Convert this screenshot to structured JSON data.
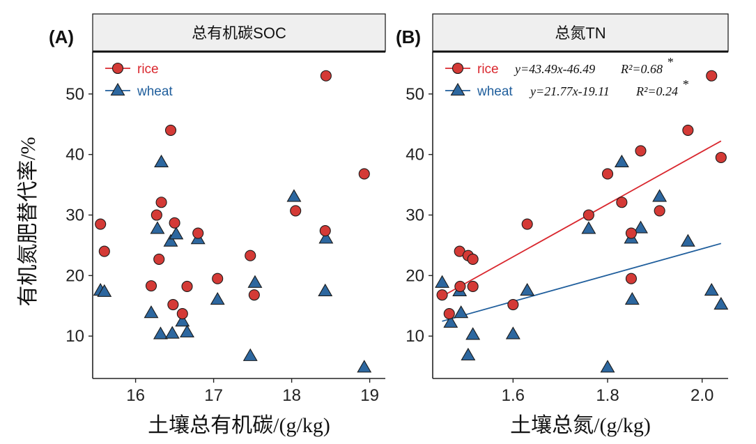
{
  "y_axis_title": "有机氮肥替代率/%",
  "colors": {
    "rice": "#d9272e",
    "wheat": "#1f5e9c",
    "rice_fill": "#d43a36",
    "wheat_fill": "#2d679f"
  },
  "chart_data": [
    {
      "type": "scatter",
      "panel_letter": "(A)",
      "title": "总有机碳SOC",
      "xlabel": "土壤总有机碳/(g/kg)",
      "ylabel": "有机氮肥替代率/%",
      "xlim": [
        15.45,
        19.2
      ],
      "ylim": [
        3,
        57
      ],
      "xticks": [
        16,
        17,
        18,
        19
      ],
      "xtick_labels": [
        "16",
        "17",
        "18",
        "19"
      ],
      "yticks": [
        10,
        20,
        30,
        40,
        50
      ],
      "ytick_labels": [
        "10",
        "20",
        "30",
        "40",
        "50"
      ],
      "grid": false,
      "legend_position": "top-left",
      "series": [
        {
          "name": "rice",
          "marker": "circle",
          "points": [
            [
              15.55,
              28.5
            ],
            [
              15.6,
              24.0
            ],
            [
              16.2,
              18.3
            ],
            [
              16.27,
              30.0
            ],
            [
              16.3,
              22.7
            ],
            [
              16.33,
              32.1
            ],
            [
              16.45,
              44.0
            ],
            [
              16.48,
              15.2
            ],
            [
              16.5,
              28.7
            ],
            [
              16.6,
              13.7
            ],
            [
              16.66,
              18.2
            ],
            [
              16.8,
              27.0
            ],
            [
              17.05,
              19.5
            ],
            [
              17.47,
              23.3
            ],
            [
              17.52,
              16.8
            ],
            [
              18.05,
              30.7
            ],
            [
              18.43,
              27.4
            ],
            [
              18.44,
              53.0
            ],
            [
              18.93,
              36.8
            ]
          ]
        },
        {
          "name": "wheat",
          "marker": "triangle",
          "points": [
            [
              15.55,
              17.5
            ],
            [
              15.6,
              17.3
            ],
            [
              16.2,
              13.8
            ],
            [
              16.28,
              27.7
            ],
            [
              16.32,
              10.3
            ],
            [
              16.33,
              38.7
            ],
            [
              16.45,
              25.6
            ],
            [
              16.47,
              10.4
            ],
            [
              16.52,
              26.8
            ],
            [
              16.6,
              12.4
            ],
            [
              16.66,
              10.6
            ],
            [
              16.8,
              26.0
            ],
            [
              17.05,
              16.0
            ],
            [
              17.47,
              6.7
            ],
            [
              17.53,
              18.8
            ],
            [
              18.03,
              33.0
            ],
            [
              18.43,
              17.4
            ],
            [
              18.44,
              26.1
            ],
            [
              18.93,
              4.8
            ]
          ]
        }
      ]
    },
    {
      "type": "scatter",
      "panel_letter": "(B)",
      "title": "总氮TN",
      "xlabel": "土壤总氮/(g/kg)",
      "ylabel": "有机氮肥替代率/%",
      "xlim": [
        1.43,
        2.055
      ],
      "ylim": [
        3,
        57
      ],
      "xticks": [
        1.6,
        1.8,
        2.0
      ],
      "xtick_labels": [
        "1.6",
        "1.8",
        "2.0"
      ],
      "yticks": [
        10,
        20,
        30,
        40,
        50
      ],
      "ytick_labels": [
        "10",
        "20",
        "30",
        "40",
        "50"
      ],
      "grid": false,
      "legend_position": "top-left",
      "series": [
        {
          "name": "rice",
          "marker": "circle",
          "equation": "y=43.49x-46.49",
          "r2": "R²=0.68",
          "sig": "*",
          "fit": {
            "slope": 43.49,
            "intercept": -46.49,
            "x_range": [
              1.45,
              2.04
            ]
          },
          "points": [
            [
              1.45,
              16.8
            ],
            [
              1.465,
              13.7
            ],
            [
              1.487,
              24.0
            ],
            [
              1.488,
              18.2
            ],
            [
              1.505,
              23.3
            ],
            [
              1.515,
              22.7
            ],
            [
              1.515,
              18.2
            ],
            [
              1.6,
              15.2
            ],
            [
              1.63,
              28.5
            ],
            [
              1.76,
              30.0
            ],
            [
              1.8,
              36.8
            ],
            [
              1.83,
              32.1
            ],
            [
              1.85,
              27.0
            ],
            [
              1.85,
              19.5
            ],
            [
              1.87,
              40.6
            ],
            [
              1.91,
              30.7
            ],
            [
              1.97,
              44.0
            ],
            [
              2.02,
              53.0
            ],
            [
              2.04,
              39.5
            ]
          ]
        },
        {
          "name": "wheat",
          "marker": "triangle",
          "equation": "y=21.77x-19.11",
          "r2": "R²=0.24",
          "sig": "*",
          "fit": {
            "slope": 21.77,
            "intercept": -19.11,
            "x_range": [
              1.45,
              2.04
            ]
          },
          "points": [
            [
              1.45,
              18.8
            ],
            [
              1.468,
              12.2
            ],
            [
              1.487,
              17.4
            ],
            [
              1.49,
              13.8
            ],
            [
              1.505,
              6.8
            ],
            [
              1.515,
              10.2
            ],
            [
              1.6,
              10.3
            ],
            [
              1.63,
              17.5
            ],
            [
              1.76,
              27.7
            ],
            [
              1.8,
              4.8
            ],
            [
              1.83,
              38.7
            ],
            [
              1.85,
              26.1
            ],
            [
              1.852,
              16.0
            ],
            [
              1.87,
              27.8
            ],
            [
              1.91,
              33.0
            ],
            [
              1.97,
              25.6
            ],
            [
              2.02,
              17.5
            ],
            [
              2.04,
              15.2
            ]
          ]
        }
      ]
    }
  ]
}
